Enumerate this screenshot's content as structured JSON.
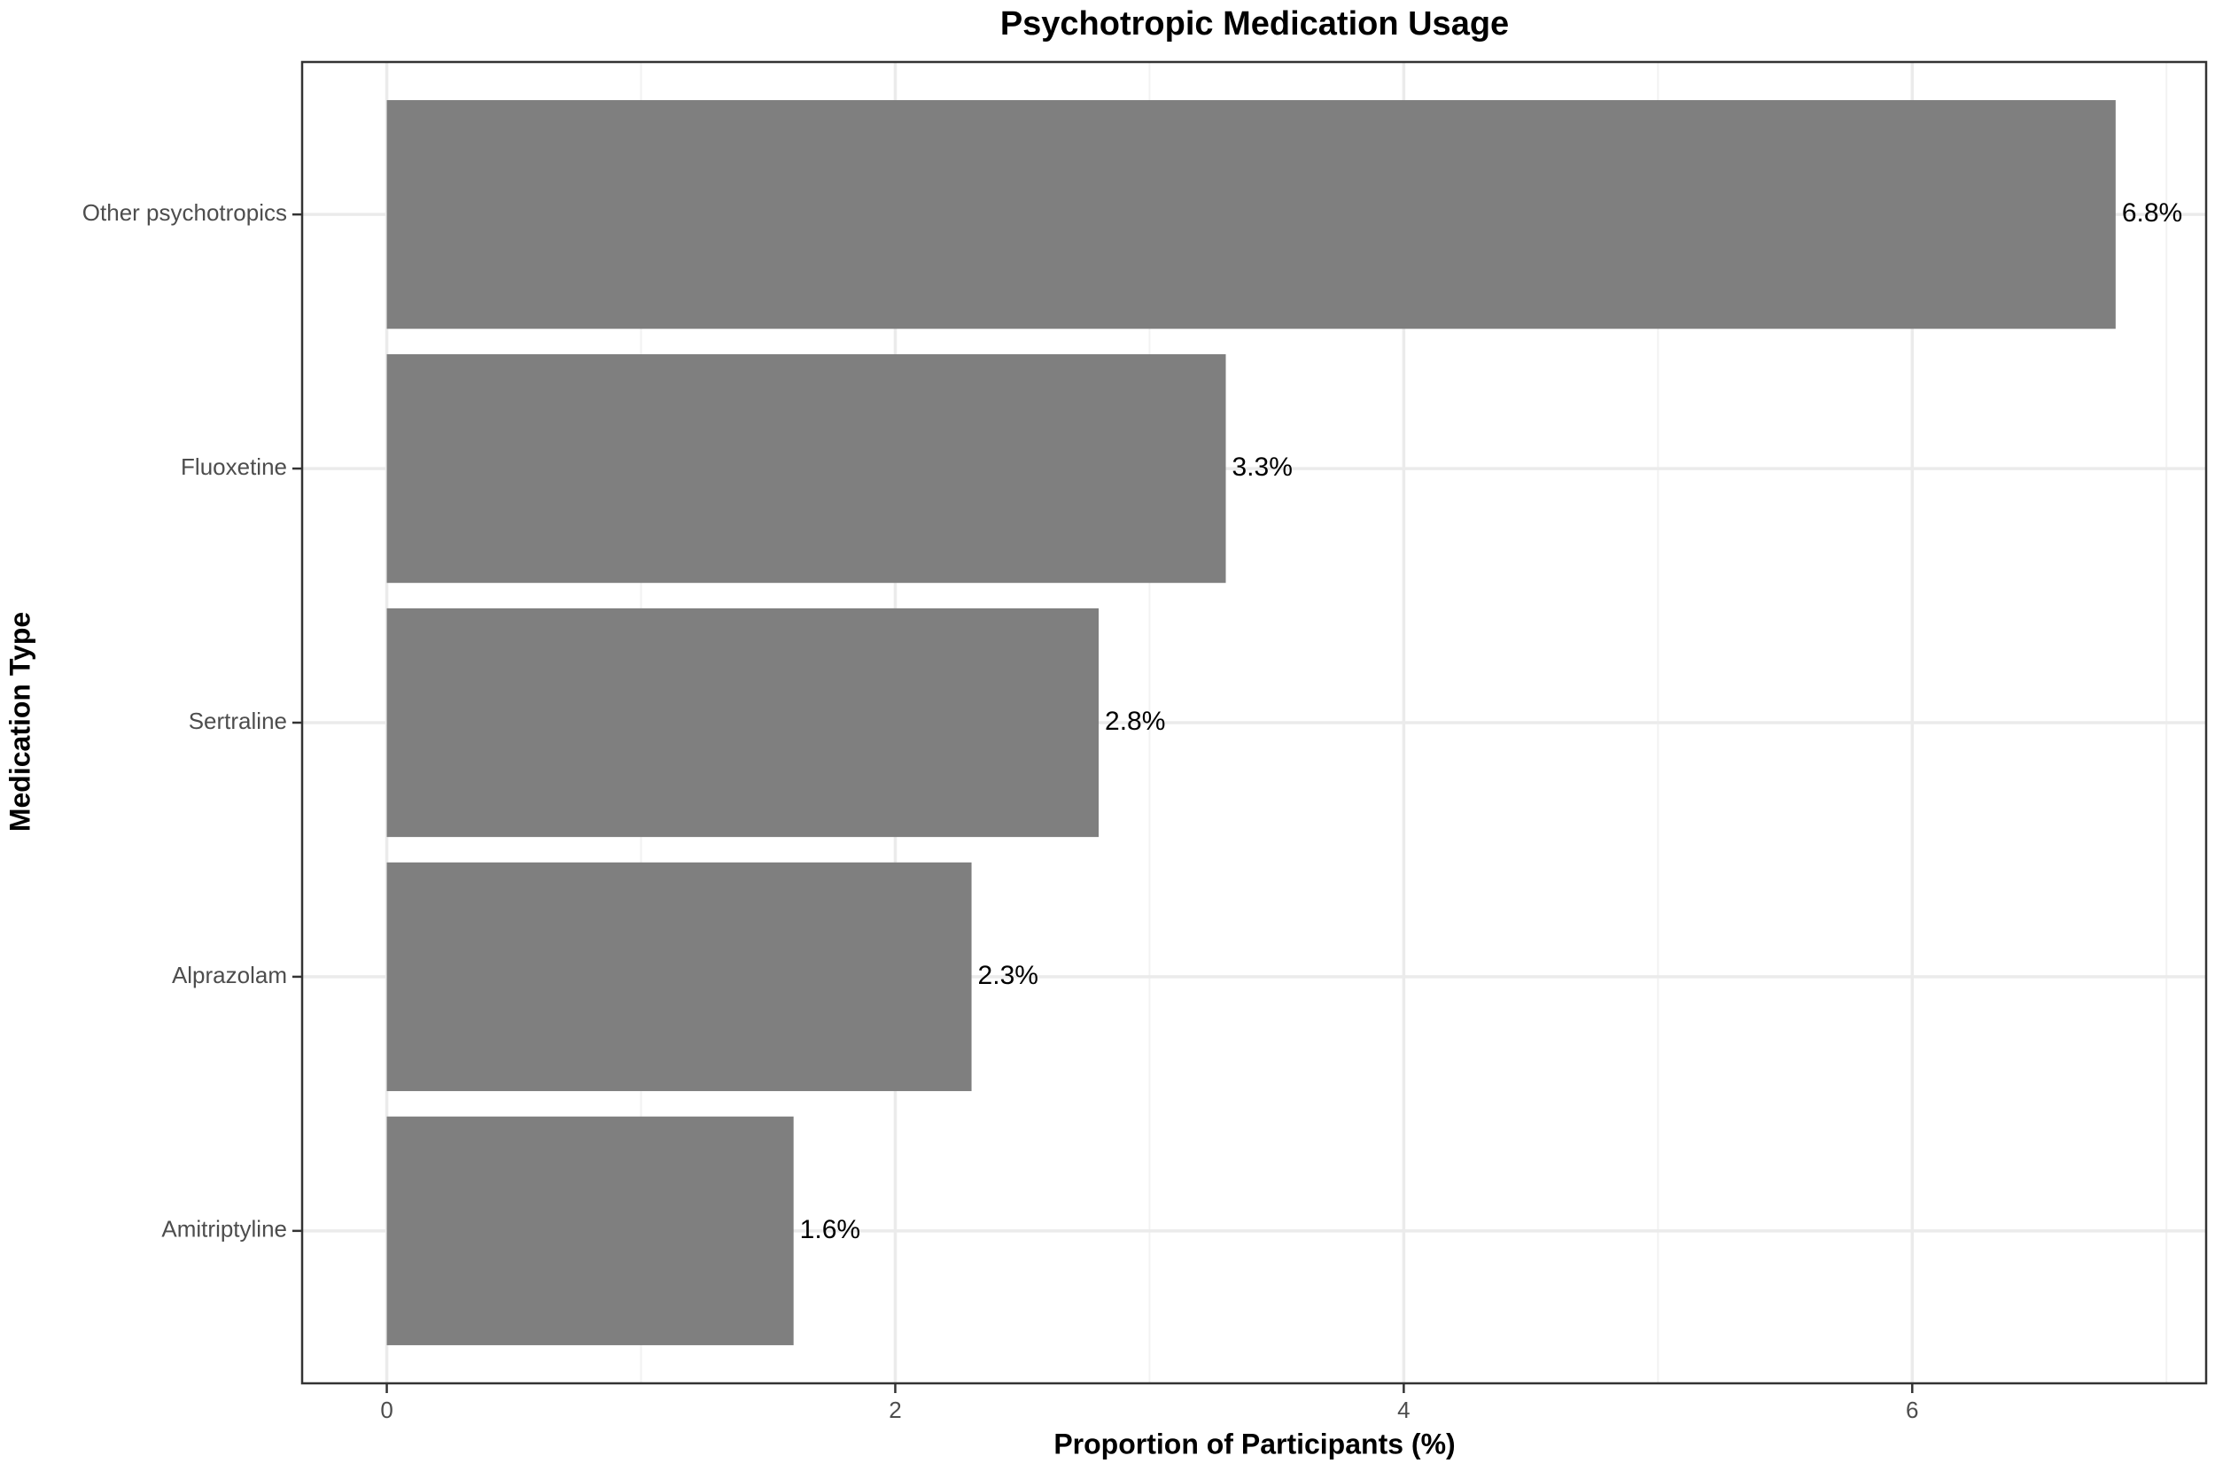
{
  "chart_data": {
    "type": "bar",
    "orientation": "horizontal",
    "title": "Psychotropic Medication Usage",
    "x_label": "Proportion of Participants (%)",
    "y_label": "Medication Type",
    "categories": [
      "Other psychotropics",
      "Fluoxetine",
      "Sertraline",
      "Alprazolam",
      "Amitriptyline"
    ],
    "values": [
      6.8,
      3.3,
      2.8,
      2.3,
      1.6
    ],
    "value_labels": [
      "6.8%",
      "3.3%",
      "2.8%",
      "2.3%",
      "1.6%"
    ],
    "color": "#7f7f7f",
    "xlim": [
      -0.333,
      7.156
    ],
    "xticks": [
      0,
      2,
      4,
      6
    ],
    "xminor": [
      1,
      3,
      5,
      7
    ],
    "grid": true
  }
}
